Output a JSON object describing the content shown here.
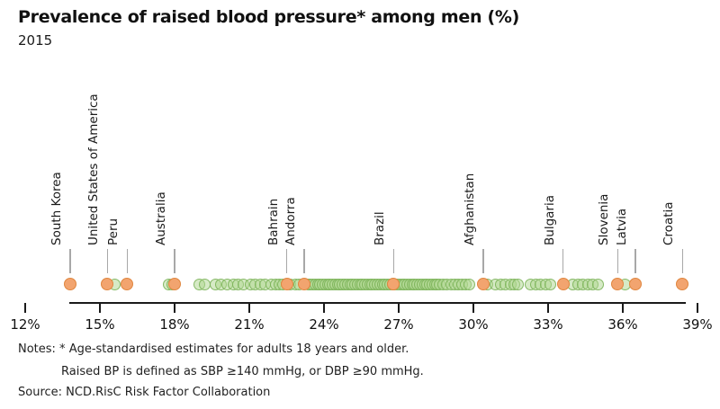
{
  "header": {
    "title": "Prevalence of raised blood pressure* among men (%)",
    "subtitle": "2015"
  },
  "notes": {
    "line1": "Notes: * Age-standardised estimates for adults 18 years and older.",
    "line2": "Raised BP is defined as SBP ≥140 mmHg, or DBP ≥90 mmHg.",
    "source": "Source: NCD.RisC Risk Factor Collaboration"
  },
  "chart_data": {
    "type": "scatter",
    "title": "Prevalence of raised blood pressure* among men (%)",
    "subtitle": "2015",
    "unit": "%",
    "axis": {
      "min": 12,
      "max": 39,
      "tick_values": [
        12,
        15,
        18,
        21,
        24,
        27,
        30,
        33,
        36,
        39
      ],
      "tick_suffix": "%",
      "grid": false,
      "orientation": "horizontal-strip"
    },
    "labeled_countries": [
      {
        "name": "South Korea",
        "value": 13.8
      },
      {
        "name": "United States of America",
        "value": 15.3
      },
      {
        "name": "Peru",
        "value": 16.1
      },
      {
        "name": "Australia",
        "value": 18.0
      },
      {
        "name": "Bahrain",
        "value": 22.5
      },
      {
        "name": "Andorra",
        "value": 23.2
      },
      {
        "name": "Brazil",
        "value": 26.8
      },
      {
        "name": "Afghanistan",
        "value": 30.4
      },
      {
        "name": "Bulgaria",
        "value": 33.6
      },
      {
        "name": "Slovenia",
        "value": 35.8
      },
      {
        "name": "Latvia",
        "value": 36.5
      },
      {
        "name": "Croatia",
        "value": 38.4
      }
    ],
    "unlabeled_values": [
      15.6,
      17.75,
      17.9,
      19.0,
      19.2,
      19.65,
      19.85,
      20.1,
      20.35,
      20.55,
      20.75,
      21.05,
      21.25,
      21.45,
      21.65,
      21.9,
      22.05,
      22.2,
      22.35,
      22.65,
      22.85,
      23.0,
      23.35,
      23.45,
      23.55,
      23.65,
      23.75,
      23.85,
      23.95,
      24.05,
      24.15,
      24.25,
      24.35,
      24.45,
      24.55,
      24.65,
      24.75,
      24.85,
      24.95,
      25.05,
      25.15,
      25.25,
      25.35,
      25.45,
      25.55,
      25.65,
      25.75,
      25.85,
      25.95,
      26.05,
      26.15,
      26.25,
      26.35,
      26.45,
      26.55,
      26.65,
      26.75,
      26.85,
      26.95,
      27.05,
      27.15,
      27.25,
      27.35,
      27.45,
      27.55,
      27.65,
      27.75,
      27.85,
      27.95,
      28.05,
      28.15,
      28.25,
      28.35,
      28.45,
      28.55,
      28.65,
      28.8,
      28.95,
      29.1,
      29.25,
      29.4,
      29.55,
      29.7,
      29.85,
      30.55,
      30.9,
      31.1,
      31.3,
      31.5,
      31.65,
      31.8,
      32.3,
      32.5,
      32.7,
      32.9,
      33.1,
      34.0,
      34.2,
      34.4,
      34.6,
      34.8,
      35.0,
      36.1
    ],
    "colors": {
      "highlight_fill": "#f2a46f",
      "highlight_stroke": "#e0863f",
      "other_fill": "#aed58d",
      "other_stroke": "#78b056",
      "leader_line": "#a8a8a8",
      "axis": "#1a1a1a"
    },
    "legend": "none"
  }
}
